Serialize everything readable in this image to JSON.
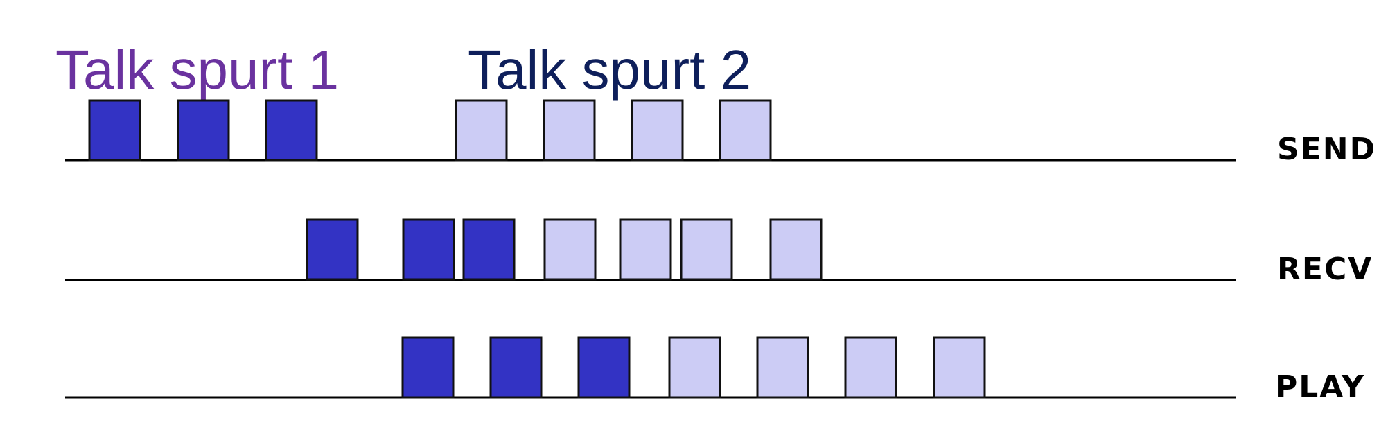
{
  "colors": {
    "spurt1_packet": "#3333c4",
    "spurt2_packet": "#ccccf5",
    "spurt1_label": "#6a329f",
    "spurt2_label": "#0e1f5b",
    "line": "#000000"
  },
  "labels": {
    "spurt1": "Talk spurt 1",
    "spurt2": "Talk spurt 2"
  },
  "rows": [
    {
      "key": "send",
      "label": "SEND",
      "packets": [
        {
          "spurt": 1
        },
        {
          "spurt": 1
        },
        {
          "spurt": 1
        },
        {
          "spurt": 2
        },
        {
          "spurt": 2
        },
        {
          "spurt": 2
        },
        {
          "spurt": 2
        }
      ]
    },
    {
      "key": "recv",
      "label": "RECV",
      "packets": [
        {
          "spurt": 1
        },
        {
          "spurt": 1
        },
        {
          "spurt": 1
        },
        {
          "spurt": 2
        },
        {
          "spurt": 2
        },
        {
          "spurt": 2
        },
        {
          "spurt": 2
        }
      ]
    },
    {
      "key": "play",
      "label": "PLAY",
      "packets": [
        {
          "spurt": 1
        },
        {
          "spurt": 1
        },
        {
          "spurt": 1
        },
        {
          "spurt": 2
        },
        {
          "spurt": 2
        },
        {
          "spurt": 2
        },
        {
          "spurt": 2
        }
      ]
    }
  ]
}
